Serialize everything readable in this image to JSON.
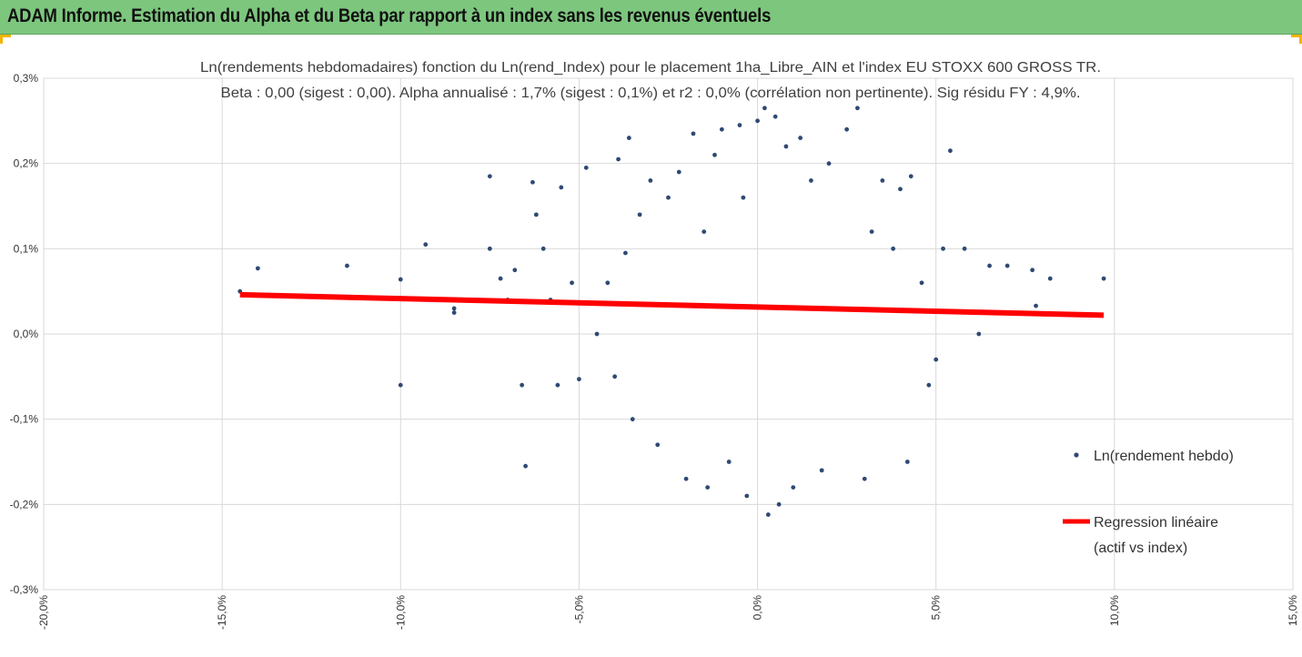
{
  "banner": {
    "title": "ADAM Informe. Estimation du Alpha et du Beta par rapport à un index sans les revenus éventuels"
  },
  "colors": {
    "banner_bg": "#7dc67e",
    "accent_corner": "#f2b400",
    "points": "#2f4a73",
    "regression": "#ff0000",
    "grid": "#d9d9d9"
  },
  "chart_data": {
    "type": "scatter",
    "title_line1": "Ln(rendements hebdomadaires) fonction du Ln(rend_Index) pour le placement 1ha_Libre_AIN et l'index EU STOXX 600 GROSS TR.",
    "title_line2": "Beta : 0,00 (sigest : 0,00). Alpha annualisé : 1,7% (sigest : 0,1%) et r2 : 0,0% (corrélation non pertinente). Sig résidu FY : 4,9%.",
    "xlabel": "",
    "ylabel": "",
    "xlim": [
      -20,
      15
    ],
    "ylim": [
      -0.3,
      0.3
    ],
    "x_ticks": [
      "-20,0%",
      "-15,0%",
      "-10,0%",
      "-5,0%",
      "0,0%",
      "5,0%",
      "10,0%",
      "15,0%"
    ],
    "y_ticks": [
      "0,3%",
      "0,2%",
      "0,1%",
      "0,0%",
      "-0,1%",
      "-0,2%",
      "-0,3%"
    ],
    "grid": "horizontal",
    "legend_position": "right",
    "series": [
      {
        "name": "Ln(rendement hebdo)",
        "kind": "scatter",
        "points": [
          [
            -14.5,
            0.05
          ],
          [
            -14.0,
            0.077
          ],
          [
            -11.5,
            0.08
          ],
          [
            -10.0,
            0.064
          ],
          [
            -10.0,
            -0.06
          ],
          [
            -9.3,
            0.105
          ],
          [
            -8.5,
            0.03
          ],
          [
            -8.5,
            0.025
          ],
          [
            -7.5,
            0.185
          ],
          [
            -7.5,
            0.1
          ],
          [
            -7.2,
            0.065
          ],
          [
            -7.0,
            0.04
          ],
          [
            -6.8,
            0.075
          ],
          [
            -6.6,
            -0.06
          ],
          [
            -6.5,
            -0.155
          ],
          [
            -6.3,
            0.178
          ],
          [
            -6.2,
            0.14
          ],
          [
            -6.0,
            0.1
          ],
          [
            -5.8,
            0.04
          ],
          [
            -5.6,
            -0.06
          ],
          [
            -5.5,
            0.172
          ],
          [
            -5.2,
            0.06
          ],
          [
            -5.0,
            -0.053
          ],
          [
            -4.8,
            0.195
          ],
          [
            -4.5,
            0.0
          ],
          [
            -4.2,
            0.06
          ],
          [
            -4.0,
            -0.05
          ],
          [
            -3.9,
            0.205
          ],
          [
            -3.7,
            0.095
          ],
          [
            -3.6,
            0.23
          ],
          [
            -3.5,
            -0.1
          ],
          [
            -3.3,
            0.14
          ],
          [
            -3.0,
            0.18
          ],
          [
            -2.8,
            -0.13
          ],
          [
            -2.5,
            0.16
          ],
          [
            -2.2,
            0.19
          ],
          [
            -2.0,
            -0.17
          ],
          [
            -1.8,
            0.235
          ],
          [
            -1.5,
            0.12
          ],
          [
            -1.4,
            -0.18
          ],
          [
            -1.2,
            0.21
          ],
          [
            -1.0,
            0.24
          ],
          [
            -0.8,
            -0.15
          ],
          [
            -0.5,
            0.245
          ],
          [
            -0.4,
            0.16
          ],
          [
            -0.3,
            -0.19
          ],
          [
            0.0,
            0.25
          ],
          [
            0.2,
            0.265
          ],
          [
            0.3,
            -0.212
          ],
          [
            0.5,
            0.255
          ],
          [
            0.6,
            -0.2
          ],
          [
            0.8,
            0.22
          ],
          [
            1.0,
            -0.18
          ],
          [
            1.2,
            0.23
          ],
          [
            1.5,
            0.18
          ],
          [
            1.8,
            -0.16
          ],
          [
            2.0,
            0.2
          ],
          [
            2.5,
            0.24
          ],
          [
            2.8,
            0.265
          ],
          [
            3.0,
            -0.17
          ],
          [
            3.2,
            0.12
          ],
          [
            3.5,
            0.18
          ],
          [
            3.8,
            0.1
          ],
          [
            4.0,
            0.17
          ],
          [
            4.2,
            -0.15
          ],
          [
            4.3,
            0.185
          ],
          [
            4.6,
            0.06
          ],
          [
            4.8,
            -0.06
          ],
          [
            5.0,
            -0.03
          ],
          [
            5.2,
            0.1
          ],
          [
            5.4,
            0.215
          ],
          [
            5.8,
            0.1
          ],
          [
            6.2,
            0.0
          ],
          [
            6.5,
            0.08
          ],
          [
            7.0,
            0.08
          ],
          [
            7.7,
            0.075
          ],
          [
            7.8,
            0.033
          ],
          [
            8.2,
            0.065
          ],
          [
            9.7,
            0.065
          ]
        ]
      },
      {
        "name": "Regression linéaire",
        "name_line2": "(actif vs index)",
        "kind": "line",
        "points": [
          [
            -14.5,
            0.046
          ],
          [
            9.7,
            0.022
          ]
        ]
      }
    ]
  }
}
